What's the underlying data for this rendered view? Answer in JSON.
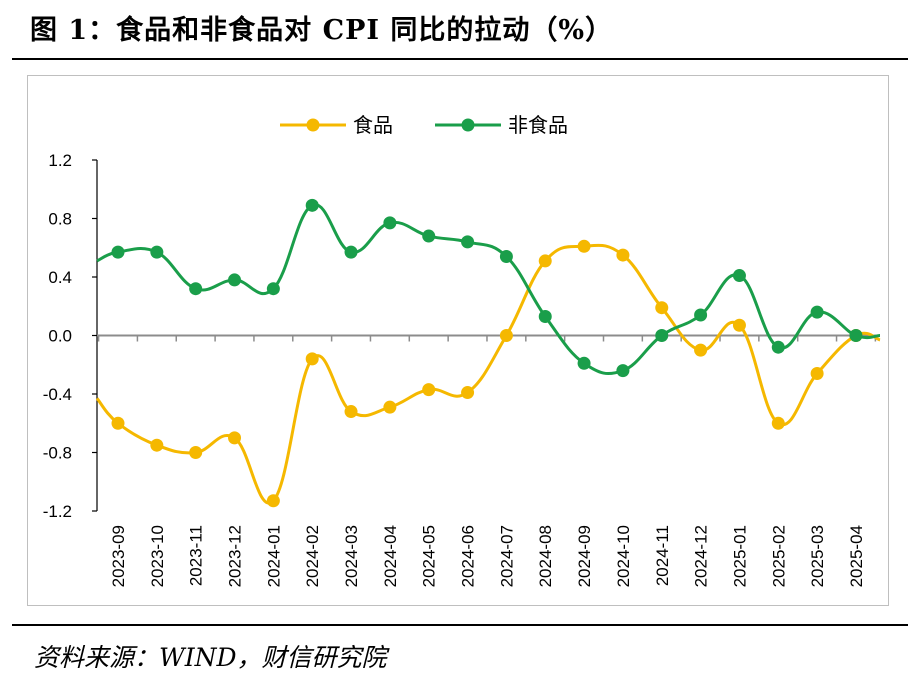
{
  "figure": {
    "title": "图 1：食品和非食品对 CPI 同比的拉动（%）",
    "source": "资料来源：WIND，财信研究院"
  },
  "colors": {
    "food": "#F5B800",
    "nonfood": "#1A9E4A",
    "axis": "#000000",
    "zero_line": "#8c8c8c"
  },
  "chart_data": {
    "type": "line",
    "title": "",
    "xlabel": "",
    "ylabel": "",
    "categories": [
      "2023-09",
      "2023-10",
      "2023-11",
      "2023-12",
      "2024-01",
      "2024-02",
      "2024-03",
      "2024-04",
      "2024-05",
      "2024-06",
      "2024-07",
      "2024-08",
      "2024-09",
      "2024-10",
      "2024-11",
      "2024-12",
      "2025-01",
      "2025-02",
      "2025-03",
      "2025-04"
    ],
    "series": [
      {
        "name": "食品",
        "color": "#F5B800",
        "values": [
          -0.6,
          -0.75,
          -0.8,
          -0.7,
          -1.13,
          -0.16,
          -0.52,
          -0.49,
          -0.37,
          -0.39,
          0.0,
          0.51,
          0.61,
          0.55,
          0.19,
          -0.1,
          0.07,
          -0.6,
          -0.26,
          0.0
        ],
        "lead_value": -0.43,
        "trail_value": -0.03
      },
      {
        "name": "非食品",
        "color": "#1A9E4A",
        "values": [
          0.57,
          0.57,
          0.32,
          0.38,
          0.32,
          0.89,
          0.57,
          0.77,
          0.68,
          0.64,
          0.54,
          0.13,
          -0.19,
          -0.24,
          0.0,
          0.14,
          0.41,
          -0.08,
          0.16,
          0.0
        ],
        "lead_value": 0.51,
        "trail_value": 0.0
      }
    ],
    "yticks": [
      "1.2",
      "0.8",
      "0.4",
      "0.0",
      "-0.4",
      "-0.8",
      "-1.2"
    ],
    "ylim": [
      -1.2,
      1.2
    ],
    "grid": false,
    "legend": "top-center"
  }
}
